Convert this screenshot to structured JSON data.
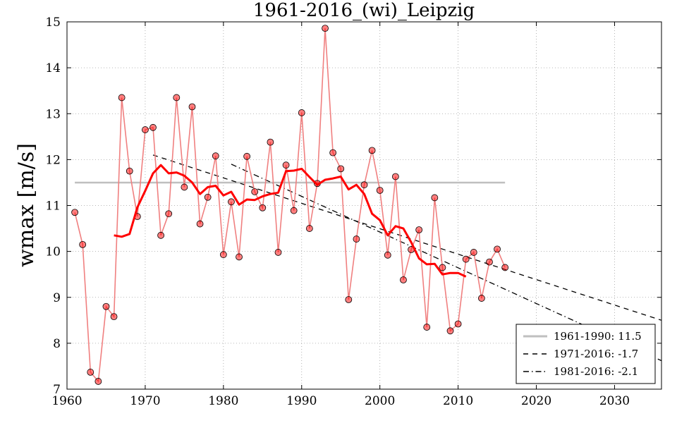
{
  "chart_data": {
    "type": "line",
    "title": "1961-2016_(wi)_Leipzig",
    "xlabel": "",
    "ylabel": "wmax [m/s]",
    "xlim": [
      1960,
      2036
    ],
    "ylim": [
      7,
      15
    ],
    "grid": true,
    "x_ticks": [
      1960,
      1970,
      1980,
      1990,
      2000,
      2010,
      2020,
      2030
    ],
    "y_ticks": [
      7,
      8,
      9,
      10,
      11,
      12,
      13,
      14,
      15
    ],
    "colors": {
      "points": "#ff0000",
      "points_line": "#f08080",
      "running_mean": "#ff0000",
      "reference": "#bfbfbf",
      "trend": "#000000",
      "grid": "#a0a0a0"
    },
    "series": [
      {
        "name": "annual",
        "x": [
          1961,
          1962,
          1963,
          1964,
          1965,
          1966,
          1967,
          1968,
          1969,
          1970,
          1971,
          1972,
          1973,
          1974,
          1975,
          1976,
          1977,
          1978,
          1979,
          1980,
          1981,
          1982,
          1983,
          1984,
          1985,
          1986,
          1987,
          1988,
          1989,
          1990,
          1991,
          1992,
          1993,
          1994,
          1995,
          1996,
          1997,
          1998,
          1999,
          2000,
          2001,
          2002,
          2003,
          2004,
          2005,
          2006,
          2007,
          2008,
          2009,
          2010,
          2011,
          2012,
          2013,
          2014,
          2015,
          2016
        ],
        "values": [
          10.85,
          10.15,
          7.37,
          7.17,
          8.8,
          8.58,
          13.35,
          11.75,
          10.76,
          12.65,
          12.7,
          10.35,
          10.82,
          13.35,
          11.4,
          13.15,
          10.6,
          11.18,
          12.08,
          9.93,
          11.08,
          9.88,
          12.07,
          11.3,
          10.95,
          12.38,
          9.98,
          11.88,
          10.89,
          13.02,
          10.5,
          11.48,
          14.86,
          12.15,
          11.8,
          8.95,
          10.27,
          11.45,
          12.2,
          11.33,
          9.92,
          11.63,
          9.38,
          10.04,
          10.47,
          8.35,
          11.17,
          9.65,
          8.27,
          8.42,
          9.83,
          9.98,
          8.98,
          9.77,
          10.05,
          9.65
        ]
      },
      {
        "name": "running mean",
        "x": [
          1966,
          1967,
          1968,
          1969,
          1970,
          1971,
          1972,
          1973,
          1974,
          1975,
          1976,
          1977,
          1978,
          1979,
          1980,
          1981,
          1982,
          1983,
          1984,
          1985,
          1986,
          1987,
          1988,
          1989,
          1990,
          1991,
          1992,
          1993,
          1994,
          1995,
          1996,
          1997,
          1998,
          1999,
          2000,
          2001,
          2002,
          2003,
          2004,
          2005,
          2006,
          2007,
          2008,
          2009,
          2010,
          2011
        ],
        "values": [
          10.35,
          10.32,
          10.38,
          10.96,
          11.32,
          11.7,
          11.88,
          11.7,
          11.72,
          11.65,
          11.5,
          11.25,
          11.4,
          11.43,
          11.22,
          11.3,
          11.02,
          11.13,
          11.12,
          11.2,
          11.25,
          11.28,
          11.75,
          11.76,
          11.8,
          11.62,
          11.45,
          11.56,
          11.59,
          11.63,
          11.35,
          11.45,
          11.25,
          10.82,
          10.68,
          10.35,
          10.55,
          10.5,
          10.2,
          9.85,
          9.72,
          9.73,
          9.5,
          9.53,
          9.53,
          9.45
        ]
      }
    ],
    "reference_line": {
      "x": [
        1961,
        2016
      ],
      "value": 11.5
    },
    "trend_1971": {
      "x": [
        1971,
        2036
      ],
      "values": [
        12.1,
        8.5
      ]
    },
    "trend_1981": {
      "x": [
        1981,
        2036
      ],
      "values": [
        11.9,
        7.62
      ]
    },
    "legend": {
      "position": "bottom-right",
      "entries": [
        {
          "label": "1961-1990: 11.5",
          "style": "solid-gray"
        },
        {
          "label": "1971-2016: -1.7",
          "style": "dashed"
        },
        {
          "label": "1981-2016: -2.1",
          "style": "dash-dot"
        }
      ]
    }
  }
}
